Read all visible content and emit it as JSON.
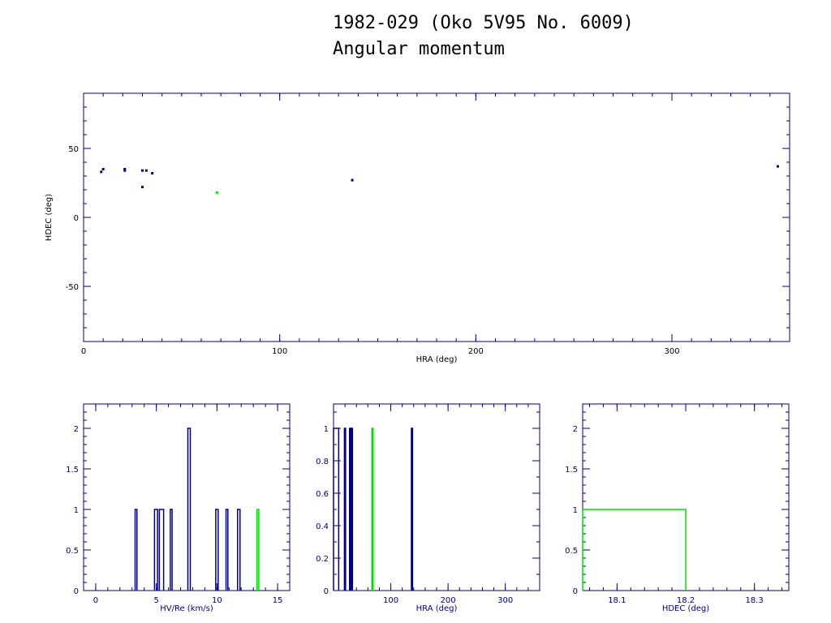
{
  "header": {
    "title": "1982-029 (Oko 5V95 No. 6009)",
    "subtitle": "Angular momentum"
  },
  "colors": {
    "primary": "#00007f",
    "highlight": "#00e000",
    "frame": "#00007f"
  },
  "chart_data": [
    {
      "type": "scatter",
      "xlabel": "HRA (deg)",
      "ylabel": "HDEC (deg)",
      "xlim": [
        0,
        360
      ],
      "ylim": [
        -90,
        90
      ],
      "xticks": [
        0,
        100,
        200,
        300
      ],
      "yticks": [
        -50,
        0,
        50
      ],
      "points": [
        {
          "x": 9,
          "y": 33,
          "color": "#00007f"
        },
        {
          "x": 10,
          "y": 35,
          "color": "#00007f"
        },
        {
          "x": 21,
          "y": 35,
          "color": "#00007f"
        },
        {
          "x": 21,
          "y": 34,
          "color": "#00007f"
        },
        {
          "x": 30,
          "y": 34,
          "color": "#00007f"
        },
        {
          "x": 32,
          "y": 34,
          "color": "#00007f"
        },
        {
          "x": 35,
          "y": 32,
          "color": "#00007f"
        },
        {
          "x": 30,
          "y": 22,
          "color": "#00007f"
        },
        {
          "x": 68,
          "y": 18,
          "color": "#00e000"
        },
        {
          "x": 137,
          "y": 27,
          "color": "#00007f"
        },
        {
          "x": 354,
          "y": 37,
          "color": "#00007f"
        }
      ]
    },
    {
      "type": "bar",
      "xlabel": "HV/Re (km/s)",
      "ylabel": "",
      "xlim": [
        -1,
        16
      ],
      "ylim": [
        0,
        2.3
      ],
      "xticks": [
        0,
        5,
        10,
        15
      ],
      "yticks": [
        0,
        0.5,
        1,
        1.5,
        2
      ],
      "ytick_labels": [
        "0",
        "0.5",
        "1",
        "1.5",
        "2"
      ],
      "bars": [
        {
          "x0": 3.25,
          "x1": 3.4,
          "value": 1,
          "color": "#00007f"
        },
        {
          "x0": 4.85,
          "x1": 5.1,
          "value": 1,
          "color": "#00007f"
        },
        {
          "x0": 5.25,
          "x1": 5.6,
          "value": 1,
          "color": "#00007f"
        },
        {
          "x0": 6.15,
          "x1": 6.3,
          "value": 1,
          "color": "#00007f"
        },
        {
          "x0": 7.6,
          "x1": 7.8,
          "value": 2,
          "color": "#00007f"
        },
        {
          "x0": 9.9,
          "x1": 10.1,
          "value": 1,
          "color": "#00007f"
        },
        {
          "x0": 10.75,
          "x1": 10.9,
          "value": 1,
          "color": "#00007f"
        },
        {
          "x0": 11.7,
          "x1": 11.9,
          "value": 1,
          "color": "#00007f"
        },
        {
          "x0": 13.3,
          "x1": 13.45,
          "value": 1,
          "color": "#00e000"
        }
      ]
    },
    {
      "type": "bar",
      "xlabel": "HRA (deg)",
      "ylabel": "",
      "xlim": [
        0,
        360
      ],
      "ylim": [
        0,
        1.15
      ],
      "xticks": [
        100,
        200,
        300
      ],
      "yticks": [
        0,
        0.2,
        0.4,
        0.6,
        0.8,
        1
      ],
      "ytick_labels": [
        "0",
        "0.2",
        "0.4",
        "0.6",
        "0.8",
        "1"
      ],
      "bars": [
        {
          "x0": 0,
          "x1": 9,
          "value": 1,
          "color": "#00007f"
        },
        {
          "x0": 19,
          "x1": 21,
          "value": 1,
          "color": "#00007f"
        },
        {
          "x0": 28,
          "x1": 30,
          "value": 1,
          "color": "#00007f"
        },
        {
          "x0": 31,
          "x1": 33,
          "value": 1,
          "color": "#00007f"
        },
        {
          "x0": 67,
          "x1": 69,
          "value": 1,
          "color": "#00e000"
        },
        {
          "x0": 136,
          "x1": 138,
          "value": 1,
          "color": "#00007f"
        }
      ]
    },
    {
      "type": "bar",
      "xlabel": "HDEC (deg)",
      "ylabel": "",
      "xlim": [
        18.05,
        18.35
      ],
      "ylim": [
        0,
        2.3
      ],
      "xticks": [
        18.1,
        18.2,
        18.3
      ],
      "yticks": [
        0,
        0.5,
        1,
        1.5,
        2
      ],
      "ytick_labels": [
        "0",
        "0.5",
        "1",
        "1.5",
        "2"
      ],
      "bars": [
        {
          "x0": 18.05,
          "x1": 18.2,
          "value": 1,
          "color": "#00e000"
        }
      ]
    }
  ]
}
